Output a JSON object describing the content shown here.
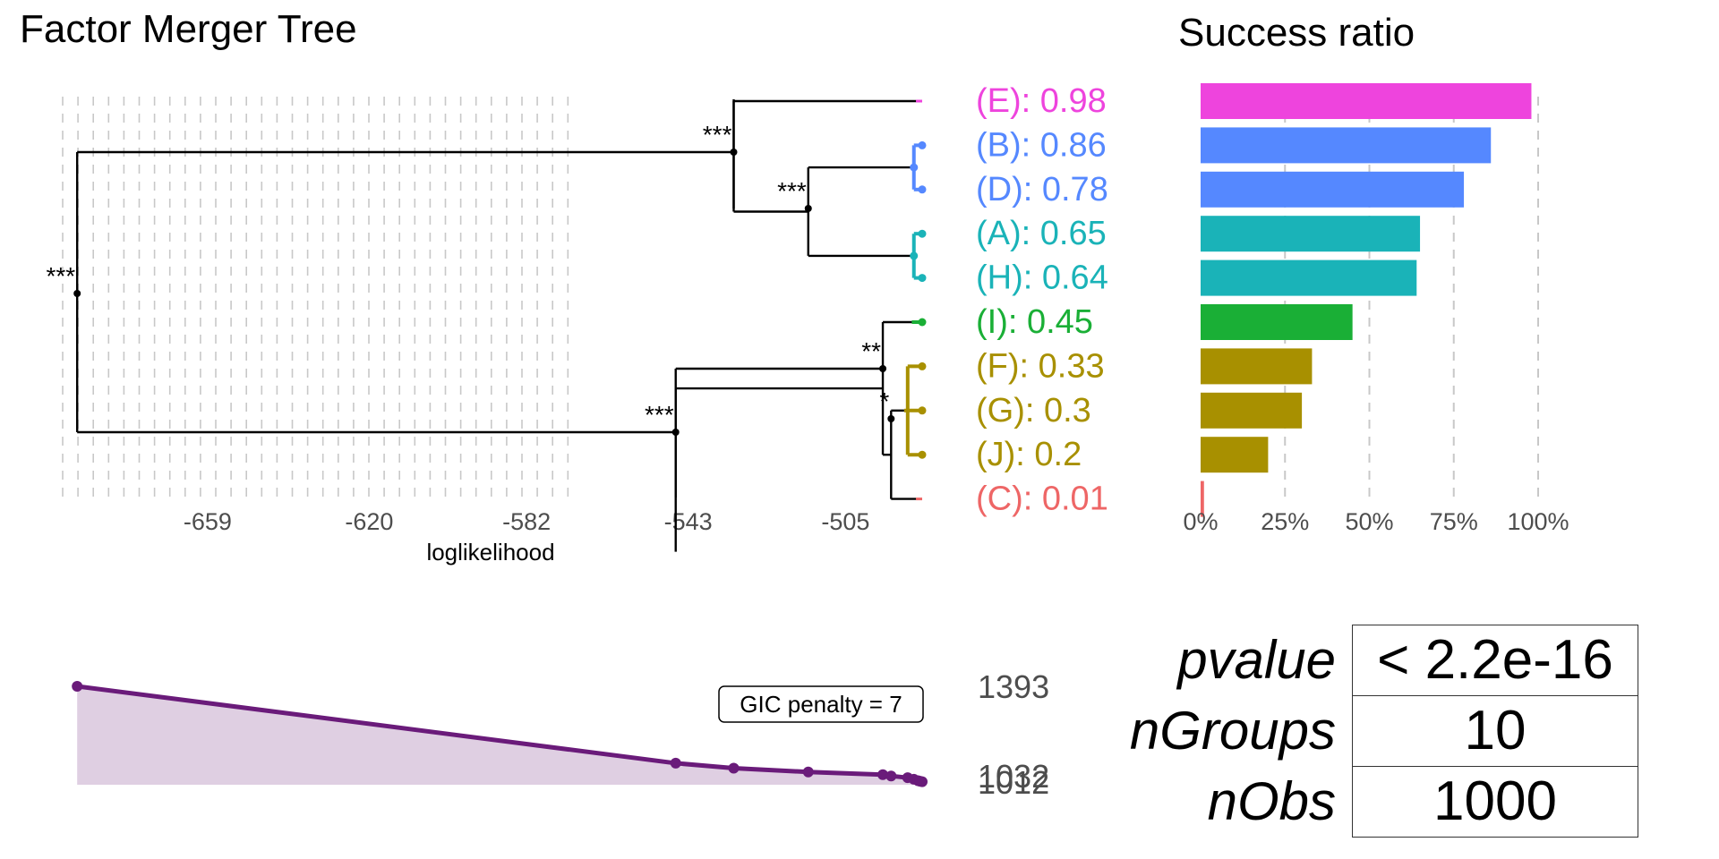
{
  "title": "Factor Merger Tree",
  "bar_title": "Success ratio",
  "chart_data": [
    {
      "type": "dendrogram",
      "title": "Factor Merger Tree",
      "xlabel": "loglikelihood",
      "x_ticks": [
        "-659",
        "-620",
        "-582",
        "-543",
        "-505"
      ],
      "x_tick_values": [
        -659,
        -620,
        -582,
        -543,
        -505
      ],
      "xlim": [
        -694,
        -486.5
      ],
      "grid": "vertical dashed",
      "leaves": [
        {
          "label": "(E): 0.98",
          "group": "E",
          "value": 0.98,
          "color": "#ee44dd"
        },
        {
          "label": "(B): 0.86",
          "group": "B",
          "value": 0.86,
          "color": "#5588ff"
        },
        {
          "label": "(D): 0.78",
          "group": "D",
          "value": 0.78,
          "color": "#5588ff"
        },
        {
          "label": "(A): 0.65",
          "group": "A",
          "value": 0.65,
          "color": "#1ab3b8"
        },
        {
          "label": "(H): 0.64",
          "group": "H",
          "value": 0.64,
          "color": "#1ab3b8"
        },
        {
          "label": "(I): 0.45",
          "group": "I",
          "value": 0.45,
          "color": "#1aaf36"
        },
        {
          "label": "(F): 0.33",
          "group": "F",
          "value": 0.33,
          "color": "#a89000"
        },
        {
          "label": "(G): 0.3",
          "group": "G",
          "value": 0.3,
          "color": "#a89000"
        },
        {
          "label": "(J): 0.2",
          "group": "J",
          "value": 0.2,
          "color": "#a89000"
        },
        {
          "label": "(C): 0.01",
          "group": "C",
          "value": 0.01,
          "color": "#ee6666"
        }
      ],
      "merges": [
        {
          "loglik": -488.5,
          "members": "B+D",
          "significance": ""
        },
        {
          "loglik": -488.5,
          "members": "A+H",
          "significance": ""
        },
        {
          "loglik": -490,
          "members": "F+G+J",
          "significance": ""
        },
        {
          "loglik": -494,
          "members": "FGJ+C",
          "significance": "*"
        },
        {
          "loglik": -496,
          "members": "I+FGJC",
          "significance": "**"
        },
        {
          "loglik": -514,
          "members": "BD+AH",
          "significance": "***"
        },
        {
          "loglik": -532,
          "members": "E+BDAH",
          "significance": "***"
        },
        {
          "loglik": -546,
          "members": "I..C",
          "significance": "***"
        },
        {
          "loglik": -690.5,
          "members": "all",
          "significance": "***"
        }
      ]
    },
    {
      "type": "bar",
      "title": "Success ratio",
      "orientation": "horizontal",
      "categories": [
        "E",
        "B",
        "D",
        "A",
        "H",
        "I",
        "F",
        "G",
        "J",
        "C"
      ],
      "values": [
        0.98,
        0.86,
        0.78,
        0.65,
        0.64,
        0.45,
        0.33,
        0.3,
        0.2,
        0.01
      ],
      "colors": [
        "#ee44dd",
        "#5588ff",
        "#5588ff",
        "#1ab3b8",
        "#1ab3b8",
        "#1aaf36",
        "#a89000",
        "#a89000",
        "#a89000",
        "#ee6666"
      ],
      "x_ticks": [
        "0%",
        "25%",
        "50%",
        "75%",
        "100%"
      ],
      "xlim": [
        0,
        1
      ],
      "grid": "vertical dashed"
    },
    {
      "type": "area",
      "title": "",
      "annotation": "GIC penalty = 7",
      "x": [
        -690.5,
        -546,
        -532,
        -514,
        -496,
        -494,
        -490,
        -488.5,
        -487.5,
        -487,
        -486.5
      ],
      "y": [
        1393,
        1086,
        1066,
        1051,
        1040,
        1035,
        1028,
        1022,
        1016,
        1014,
        1012
      ],
      "ylim": [
        1000,
        1395
      ],
      "right_labels": [
        "1393",
        "1032",
        "1012"
      ],
      "right_label_values": [
        1393,
        1032,
        1012
      ],
      "color": "#6a1b7a",
      "fill": "#dfcfe2"
    }
  ],
  "stats": {
    "pvalue_label": "pvalue",
    "pvalue": "< 2.2e-16",
    "ngroups_label": "nGroups",
    "ngroups": "10",
    "nobs_label": "nObs",
    "nobs": "1000"
  }
}
